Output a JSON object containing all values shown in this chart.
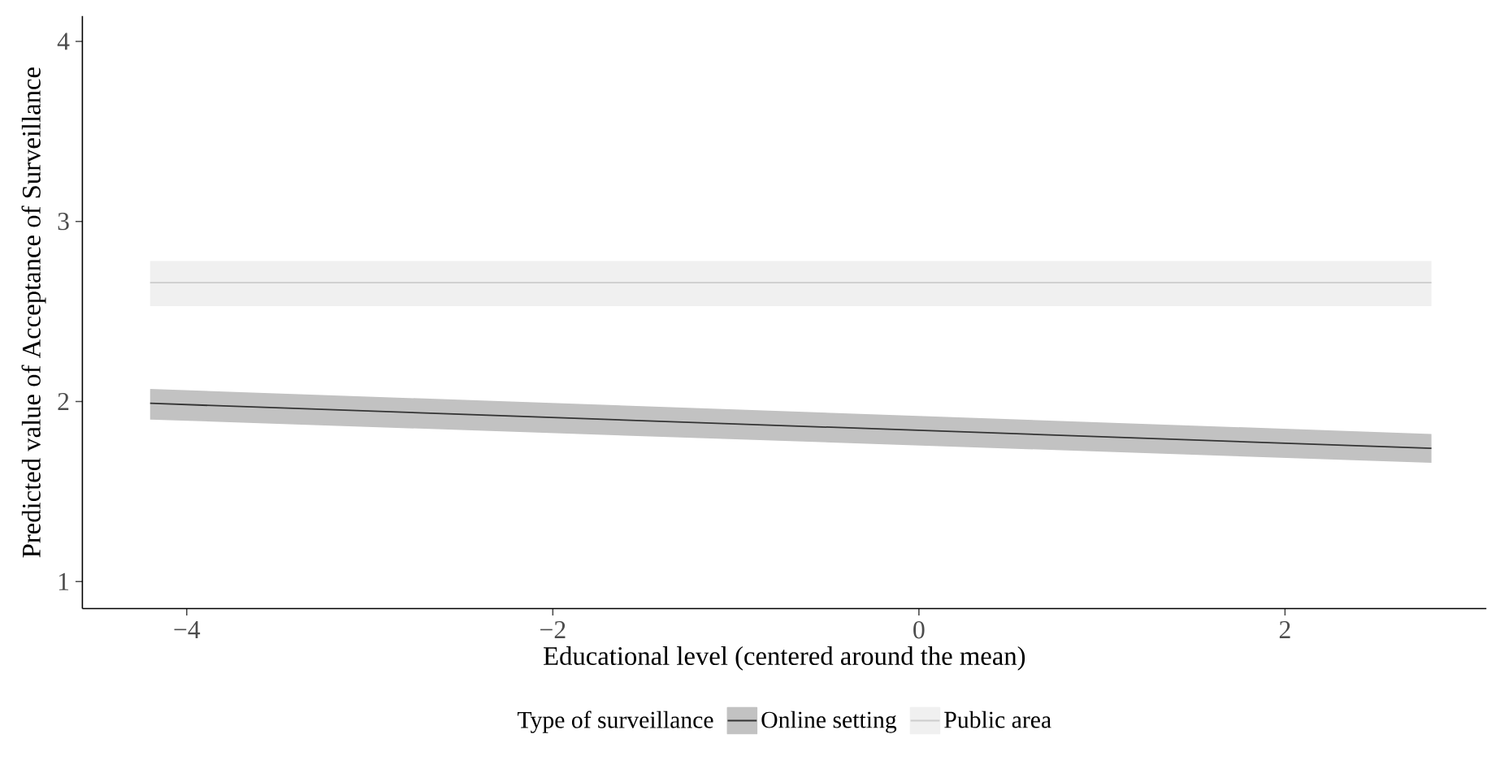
{
  "chart_data": {
    "type": "line",
    "xlabel": "Educational level (centered around the mean)",
    "ylabel": "Predicted value of Acceptance of Surveillance",
    "legend_title": "Type of surveillance",
    "x": [
      -4.2,
      2.8
    ],
    "series": [
      {
        "name": "Online setting",
        "color": "#333333",
        "values": [
          1.99,
          1.74
        ],
        "lower": [
          1.9,
          1.66
        ],
        "upper": [
          2.07,
          1.82
        ]
      },
      {
        "name": "Public area",
        "color": "#cccccc",
        "values": [
          2.66,
          2.66
        ],
        "lower": [
          2.53,
          2.53
        ],
        "upper": [
          2.78,
          2.78
        ]
      }
    ],
    "xlim": [
      -4.57,
      3.1
    ],
    "ylim": [
      0.85,
      4.14
    ],
    "xticks": [
      {
        "value": -4,
        "label": "−4"
      },
      {
        "value": -2,
        "label": "−2"
      },
      0,
      2
    ],
    "yticks": [
      1,
      2,
      3,
      4
    ],
    "grid": false,
    "legend": "bottom",
    "marker": "none",
    "line_style": "solid"
  }
}
